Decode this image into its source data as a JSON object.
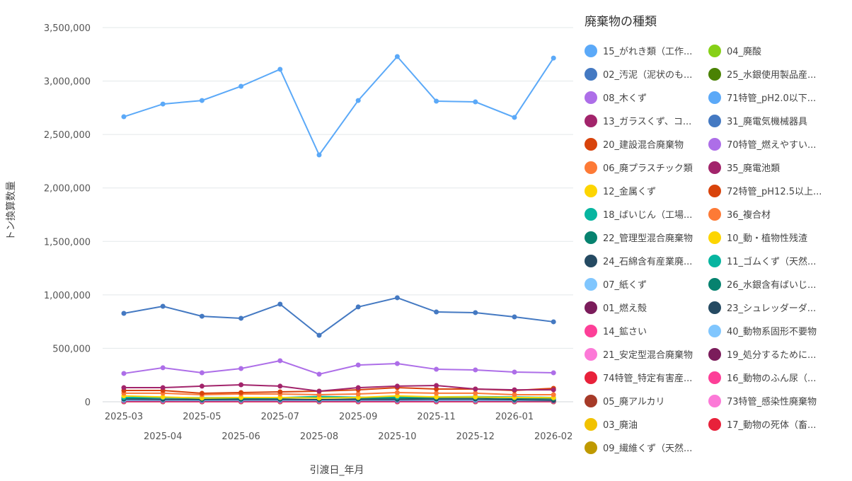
{
  "chart_data": {
    "type": "line",
    "title": "",
    "xlabel": "引渡日_年月",
    "ylabel": "トン換算数量",
    "ylim": [
      0,
      3500000
    ],
    "yticks": [
      "0",
      "500,000",
      "1,000,000",
      "1,500,000",
      "2,000,000",
      "2,500,000",
      "3,000,000",
      "3,500,000"
    ],
    "x": [
      "2025-03",
      "2025-04",
      "2025-05",
      "2025-06",
      "2025-07",
      "2025-08",
      "2025-09",
      "2025-10",
      "2025-11",
      "2025-12",
      "2026-01",
      "2026-02"
    ],
    "grid": true,
    "legend_title": "廃棄物の種類",
    "legend_placement": "right",
    "series": [
      {
        "name": "15_がれき類（工作...",
        "color": "#5ba9f8",
        "values": [
          2666000,
          2785000,
          2818000,
          2951000,
          3110000,
          2309000,
          2818000,
          3229000,
          2812000,
          2805000,
          2660000,
          3215000
        ]
      },
      {
        "name": "02_汚泥（泥状のも...",
        "color": "#4479c2",
        "values": [
          827000,
          893000,
          800000,
          781000,
          913000,
          622000,
          887000,
          973000,
          840000,
          834000,
          794000,
          748000
        ]
      },
      {
        "name": "08_木くず",
        "color": "#ad6ee8",
        "values": [
          265000,
          318000,
          271000,
          311000,
          384000,
          258000,
          344000,
          357000,
          304000,
          298000,
          278000,
          271000
        ]
      },
      {
        "name": "13_ガラスくず、コ...",
        "color": "#a2246b",
        "values": [
          132000,
          132000,
          146000,
          159000,
          146000,
          99000,
          132000,
          146000,
          152000,
          119000,
          112000,
          112000
        ]
      },
      {
        "name": "20_建設混合廃棄物",
        "color": "#d8430b",
        "values": [
          106000,
          106000,
          79000,
          86000,
          93000,
          99000,
          112000,
          132000,
          119000,
          119000,
          106000,
          126000
        ]
      },
      {
        "name": "06_廃プラスチック類",
        "color": "#fd7a36",
        "values": [
          80000,
          80000,
          66000,
          73000,
          73000,
          66000,
          73000,
          86000,
          80000,
          80000,
          66000,
          66000
        ]
      },
      {
        "name": "12_金属くず",
        "color": "#fdd501",
        "values": [
          55000,
          45000,
          35000,
          40000,
          40000,
          35000,
          40000,
          55000,
          45000,
          45000,
          40000,
          38000
        ]
      },
      {
        "name": "18_ばいじん（工場...",
        "color": "#06b5a0",
        "values": [
          40000,
          40000,
          38000,
          40000,
          38000,
          50000,
          42000,
          45000,
          45000,
          48000,
          45000,
          40000
        ]
      },
      {
        "name": "22_管理型混合廃棄物",
        "color": "#06826f",
        "values": [
          35000,
          38000,
          30000,
          32000,
          35000,
          40000,
          35000,
          35000,
          38000,
          38000,
          32000,
          30000
        ]
      },
      {
        "name": "24_石綿含有産業廃...",
        "color": "#254a62",
        "values": [
          25000,
          22000,
          20000,
          22000,
          22000,
          20000,
          22000,
          22000,
          25000,
          25000,
          20000,
          15000
        ]
      },
      {
        "name": "07_紙くず",
        "color": "#80c6fe",
        "values": [
          15000,
          15000,
          13000,
          15000,
          15000,
          13000,
          15000,
          15000,
          15000,
          15000,
          13000,
          12000
        ]
      },
      {
        "name": "01_燃え殻",
        "color": "#7b1c5b",
        "values": [
          10000,
          10000,
          9000,
          10000,
          10000,
          9000,
          10000,
          10000,
          10000,
          10000,
          9000,
          8000
        ]
      },
      {
        "name": "14_鉱さい",
        "color": "#fd3f98",
        "values": [
          5000,
          5000,
          5000,
          5000,
          5000,
          5000,
          5000,
          5000,
          5000,
          5000,
          5000,
          5000
        ]
      },
      {
        "name": "21_安定型混合廃棄物",
        "color": "#fc79d7",
        "values": [
          3000,
          3000,
          3000,
          3000,
          3000,
          3000,
          3000,
          3000,
          3000,
          3000,
          3000,
          3000
        ]
      },
      {
        "name": "74特管_特定有害産...",
        "color": "#e8213a",
        "values": [
          2000,
          2000,
          1000,
          2000,
          2000,
          2000,
          1000,
          1000,
          1000,
          2000,
          2000,
          2000
        ]
      },
      {
        "name": "05_廃アルカリ",
        "color": "#a63a28",
        "values": [
          1000,
          1000,
          1000,
          1000,
          1000,
          1000,
          1000,
          1000,
          1000,
          1000,
          1000,
          1000
        ]
      },
      {
        "name": "03_廃油",
        "color": "#f1c200",
        "values": [
          1000,
          1000,
          1000,
          1000,
          1000,
          1000,
          1000,
          1000,
          1000,
          1000,
          1000,
          1000
        ]
      },
      {
        "name": "09_繊維くず（天然...",
        "color": "#bf9900",
        "values": [
          500,
          500,
          500,
          500,
          500,
          500,
          500,
          500,
          500,
          500,
          500,
          500
        ]
      },
      {
        "name": "04_廃酸",
        "color": "#86d017",
        "values": [
          500,
          500,
          500,
          500,
          500,
          500,
          500,
          500,
          500,
          500,
          500,
          500
        ]
      },
      {
        "name": "25_水銀使用製品産...",
        "color": "#4a8204",
        "values": [
          100,
          100,
          100,
          100,
          100,
          100,
          100,
          100,
          100,
          100,
          100,
          100
        ]
      },
      {
        "name": "71特管_pH2.0以下...",
        "color": "#5ba9f8",
        "values": [
          100,
          100,
          100,
          100,
          100,
          100,
          100,
          100,
          100,
          100,
          100,
          100
        ]
      },
      {
        "name": "31_廃電気機械器具",
        "color": "#4479c2",
        "values": [
          100,
          100,
          100,
          100,
          100,
          100,
          100,
          100,
          100,
          100,
          100,
          100
        ]
      },
      {
        "name": "70特管_燃えやすい...",
        "color": "#ad6ee8",
        "values": [
          100,
          100,
          100,
          100,
          100,
          100,
          100,
          100,
          100,
          100,
          100,
          100
        ]
      },
      {
        "name": "35_廃電池類",
        "color": "#a2246b",
        "values": [
          100,
          100,
          100,
          100,
          100,
          100,
          100,
          100,
          100,
          100,
          100,
          100
        ]
      },
      {
        "name": "72特管_pH12.5以上...",
        "color": "#d8430b",
        "values": [
          100,
          100,
          100,
          100,
          100,
          100,
          100,
          100,
          100,
          100,
          100,
          100
        ]
      },
      {
        "name": "36_複合材",
        "color": "#fd7a36",
        "values": [
          100,
          100,
          100,
          100,
          100,
          100,
          100,
          100,
          100,
          100,
          100,
          100
        ]
      },
      {
        "name": "10_動・植物性残渣",
        "color": "#fdd501",
        "values": [
          100,
          100,
          100,
          100,
          100,
          100,
          100,
          100,
          100,
          100,
          100,
          100
        ]
      },
      {
        "name": "11_ゴムくず（天然...",
        "color": "#06b5a0",
        "values": [
          50,
          50,
          50,
          50,
          50,
          50,
          50,
          50,
          50,
          50,
          50,
          50
        ]
      },
      {
        "name": "26_水銀含有ばいじ...",
        "color": "#06826f",
        "values": [
          50,
          50,
          50,
          50,
          50,
          50,
          50,
          50,
          50,
          50,
          50,
          50
        ]
      },
      {
        "name": "23_シュレッダーダ...",
        "color": "#254a62",
        "values": [
          50,
          50,
          50,
          50,
          50,
          50,
          50,
          50,
          50,
          50,
          50,
          50
        ]
      },
      {
        "name": "40_動物系固形不要物",
        "color": "#80c6fe",
        "values": [
          50,
          50,
          50,
          50,
          50,
          50,
          50,
          50,
          50,
          50,
          50,
          50
        ]
      },
      {
        "name": "19_処分するために...",
        "color": "#7b1c5b",
        "values": [
          50,
          50,
          50,
          50,
          50,
          50,
          50,
          50,
          50,
          50,
          50,
          50
        ]
      },
      {
        "name": "16_動物のふん尿（...",
        "color": "#fd3f98",
        "values": [
          10,
          10,
          10,
          10,
          10,
          10,
          10,
          10,
          10,
          10,
          10,
          10
        ]
      },
      {
        "name": "73特管_感染性廃棄物",
        "color": "#fc79d7",
        "values": [
          10,
          10,
          10,
          10,
          10,
          10,
          10,
          10,
          10,
          10,
          10,
          10
        ]
      },
      {
        "name": "17_動物の死体（畜...",
        "color": "#e8213a",
        "values": [
          10,
          10,
          10,
          10,
          10,
          10,
          10,
          10,
          10,
          10,
          10,
          10
        ]
      }
    ]
  }
}
